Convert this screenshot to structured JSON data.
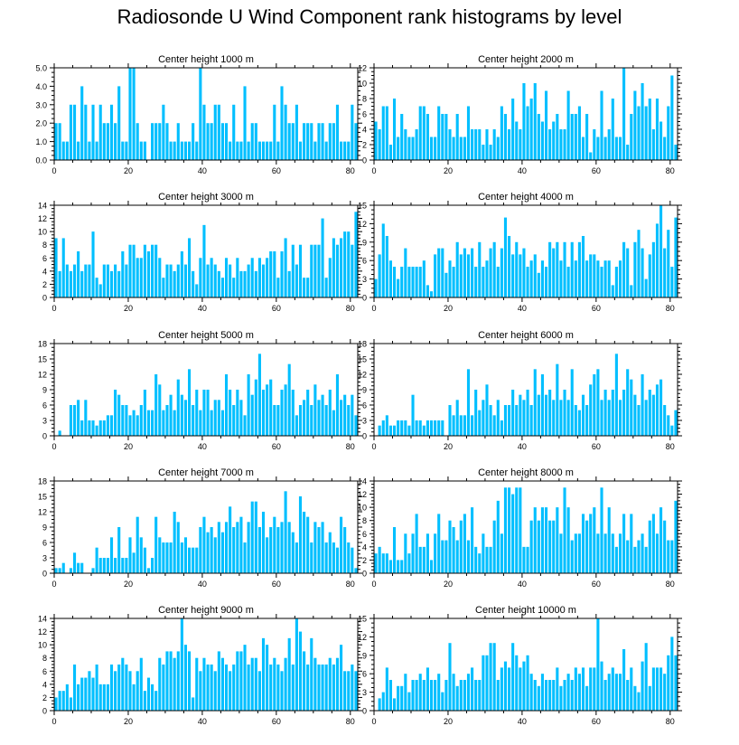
{
  "figure_title": "Radiosonde U Wind Component rank histograms by level",
  "bar_color": "#00bfff",
  "chart_data": [
    {
      "type": "bar",
      "title": "Center height 1000 m",
      "xlim": [
        0,
        82
      ],
      "x_ticks": [
        0,
        20,
        40,
        60,
        80
      ],
      "ylim": [
        0,
        5
      ],
      "y_ticks": [
        "0.0",
        "1.0",
        "2.0",
        "3.0",
        "4.0",
        "5.0"
      ],
      "values": [
        2,
        2,
        1,
        1,
        3,
        3,
        1,
        4,
        3,
        1,
        3,
        1,
        3,
        2,
        2,
        3,
        2,
        4,
        1,
        1,
        5,
        5,
        2,
        1,
        1,
        0,
        2,
        2,
        2,
        3,
        2,
        1,
        1,
        2,
        1,
        1,
        1,
        2,
        1,
        5,
        3,
        2,
        2,
        3,
        3,
        2,
        2,
        1,
        3,
        1,
        1,
        4,
        1,
        2,
        2,
        1,
        1,
        1,
        1,
        3,
        1,
        4,
        3,
        2,
        2,
        3,
        1,
        2,
        2,
        2,
        1,
        2,
        2,
        1,
        2,
        2,
        3,
        1,
        1,
        1,
        3,
        2
      ]
    },
    {
      "type": "bar",
      "title": "Center height 2000 m",
      "xlim": [
        0,
        82
      ],
      "x_ticks": [
        0,
        20,
        40,
        60,
        80
      ],
      "ylim": [
        0,
        12
      ],
      "y_ticks": [
        "0",
        "2",
        "4",
        "6",
        "8",
        "10",
        "12"
      ],
      "values": [
        5,
        4,
        7,
        7,
        2,
        8,
        3,
        6,
        4,
        3,
        3,
        4,
        7,
        7,
        6,
        3,
        3,
        7,
        6,
        6,
        4,
        3,
        6,
        3,
        3,
        7,
        4,
        4,
        4,
        2,
        4,
        2,
        4,
        3,
        7,
        6,
        4,
        8,
        5,
        4,
        10,
        7,
        8,
        10,
        6,
        5,
        9,
        4,
        5,
        6,
        4,
        4,
        9,
        6,
        6,
        7,
        3,
        6,
        1,
        4,
        3,
        9,
        3,
        4,
        8,
        3,
        3,
        12,
        2,
        6,
        9,
        7,
        10,
        7,
        8,
        4,
        8,
        5,
        3,
        7,
        11,
        2
      ]
    },
    {
      "type": "bar",
      "title": "Center height 3000 m",
      "xlim": [
        0,
        82
      ],
      "x_ticks": [
        0,
        20,
        40,
        60,
        80
      ],
      "ylim": [
        0,
        14
      ],
      "y_ticks": [
        "0",
        "2",
        "4",
        "6",
        "8",
        "10",
        "12",
        "14"
      ],
      "values": [
        9,
        4,
        9,
        5,
        4,
        5,
        7,
        4,
        5,
        5,
        10,
        3,
        2,
        5,
        5,
        4,
        5,
        4,
        7,
        5,
        8,
        8,
        6,
        6,
        8,
        7,
        8,
        8,
        6,
        3,
        5,
        5,
        4,
        5,
        7,
        5,
        9,
        4,
        2,
        6,
        11,
        5,
        6,
        5,
        4,
        3,
        6,
        5,
        3,
        6,
        4,
        4,
        5,
        6,
        4,
        6,
        5,
        6,
        7,
        7,
        3,
        7,
        9,
        4,
        8,
        5,
        8,
        3,
        3,
        8,
        8,
        8,
        12,
        3,
        6,
        9,
        8,
        9,
        10,
        10,
        8,
        13
      ]
    },
    {
      "type": "bar",
      "title": "Center height 4000 m",
      "xlim": [
        0,
        82
      ],
      "x_ticks": [
        0,
        20,
        40,
        60,
        80
      ],
      "ylim": [
        0,
        15
      ],
      "y_ticks": [
        "0",
        "3",
        "6",
        "9",
        "12",
        "15"
      ],
      "values": [
        3,
        7,
        12,
        10,
        6,
        5,
        3,
        5,
        8,
        5,
        5,
        5,
        5,
        6,
        2,
        1,
        7,
        8,
        8,
        4,
        6,
        5,
        9,
        7,
        8,
        7,
        8,
        5,
        9,
        5,
        6,
        8,
        9,
        5,
        8,
        13,
        10,
        7,
        9,
        7,
        8,
        5,
        6,
        7,
        4,
        6,
        5,
        9,
        8,
        9,
        6,
        9,
        5,
        9,
        6,
        9,
        10,
        6,
        7,
        7,
        6,
        5,
        6,
        6,
        2,
        5,
        6,
        9,
        8,
        2,
        9,
        11,
        8,
        3,
        7,
        9,
        12,
        15,
        8,
        11,
        5,
        13
      ]
    },
    {
      "type": "bar",
      "title": "Center height 5000 m",
      "xlim": [
        0,
        82
      ],
      "x_ticks": [
        0,
        20,
        40,
        60,
        80
      ],
      "ylim": [
        0,
        18
      ],
      "y_ticks": [
        "0",
        "3",
        "6",
        "9",
        "12",
        "15",
        "18"
      ],
      "values": [
        0,
        1,
        0,
        0,
        6,
        6,
        7,
        3,
        7,
        3,
        3,
        2,
        3,
        3,
        4,
        4,
        9,
        8,
        6,
        6,
        4,
        5,
        4,
        6,
        9,
        5,
        5,
        12,
        10,
        5,
        6,
        8,
        5,
        11,
        8,
        7,
        13,
        6,
        9,
        5,
        9,
        9,
        5,
        7,
        7,
        5,
        12,
        9,
        6,
        9,
        7,
        4,
        12,
        8,
        11,
        16,
        9,
        10,
        11,
        6,
        6,
        9,
        10,
        14,
        9,
        4,
        6,
        7,
        9,
        6,
        10,
        7,
        8,
        6,
        9,
        5,
        12,
        7,
        8,
        6,
        8,
        4
      ]
    },
    {
      "type": "bar",
      "title": "Center height 6000 m",
      "xlim": [
        0,
        82
      ],
      "x_ticks": [
        0,
        20,
        40,
        60,
        80
      ],
      "ylim": [
        0,
        18
      ],
      "y_ticks": [
        "0",
        "3",
        "6",
        "9",
        "12",
        "15",
        "18"
      ],
      "values": [
        0,
        2,
        3,
        4,
        2,
        2,
        3,
        3,
        3,
        2,
        8,
        3,
        3,
        2,
        3,
        3,
        3,
        3,
        3,
        0,
        6,
        4,
        7,
        4,
        4,
        13,
        4,
        9,
        5,
        7,
        10,
        6,
        4,
        7,
        3,
        6,
        6,
        9,
        6,
        8,
        7,
        9,
        6,
        13,
        8,
        12,
        8,
        9,
        7,
        14,
        7,
        9,
        7,
        13,
        6,
        5,
        8,
        6,
        10,
        12,
        13,
        7,
        9,
        7,
        9,
        16,
        7,
        9,
        13,
        11,
        8,
        6,
        12,
        7,
        9,
        8,
        10,
        11,
        6,
        4,
        2,
        5
      ]
    },
    {
      "type": "bar",
      "title": "Center height 7000 m",
      "xlim": [
        0,
        82
      ],
      "x_ticks": [
        0,
        20,
        40,
        60,
        80
      ],
      "ylim": [
        0,
        18
      ],
      "y_ticks": [
        "0",
        "3",
        "6",
        "9",
        "12",
        "15",
        "18"
      ],
      "values": [
        1,
        1,
        2,
        0,
        1,
        4,
        2,
        2,
        0,
        0,
        1,
        5,
        3,
        3,
        3,
        7,
        3,
        9,
        3,
        3,
        7,
        4,
        11,
        7,
        5,
        1,
        3,
        11,
        7,
        6,
        6,
        6,
        12,
        10,
        6,
        7,
        5,
        5,
        5,
        9,
        11,
        8,
        9,
        7,
        10,
        8,
        10,
        13,
        9,
        10,
        11,
        6,
        10,
        14,
        14,
        9,
        12,
        7,
        9,
        11,
        9,
        10,
        16,
        10,
        8,
        6,
        15,
        12,
        11,
        6,
        10,
        9,
        10,
        6,
        8,
        6,
        5,
        11,
        9,
        6,
        5,
        1
      ]
    },
    {
      "type": "bar",
      "title": "Center height 8000 m",
      "xlim": [
        0,
        82
      ],
      "x_ticks": [
        0,
        20,
        40,
        60,
        80
      ],
      "ylim": [
        0,
        14
      ],
      "y_ticks": [
        "0",
        "2",
        "4",
        "6",
        "8",
        "10",
        "12",
        "14"
      ],
      "values": [
        3,
        4,
        3,
        3,
        2,
        7,
        2,
        2,
        6,
        3,
        6,
        9,
        4,
        4,
        6,
        2,
        6,
        9,
        5,
        5,
        8,
        7,
        5,
        8,
        9,
        5,
        10,
        4,
        3,
        6,
        4,
        4,
        8,
        11,
        6,
        13,
        13,
        12,
        13,
        13,
        4,
        4,
        8,
        10,
        8,
        10,
        10,
        8,
        8,
        10,
        6,
        13,
        10,
        5,
        6,
        6,
        9,
        8,
        9,
        10,
        6,
        13,
        6,
        10,
        6,
        4,
        6,
        9,
        5,
        9,
        4,
        5,
        6,
        4,
        8,
        9,
        6,
        10,
        8,
        5,
        5,
        11
      ]
    },
    {
      "type": "bar",
      "title": "Center height 9000 m",
      "xlim": [
        0,
        82
      ],
      "x_ticks": [
        0,
        20,
        40,
        60,
        80
      ],
      "ylim": [
        0,
        14
      ],
      "y_ticks": [
        "0",
        "2",
        "4",
        "6",
        "8",
        "10",
        "12",
        "14"
      ],
      "values": [
        2,
        3,
        3,
        4,
        2,
        7,
        4,
        5,
        5,
        6,
        5,
        7,
        4,
        4,
        4,
        7,
        6,
        7,
        8,
        7,
        6,
        4,
        6,
        8,
        3,
        5,
        4,
        3,
        8,
        7,
        9,
        9,
        8,
        9,
        14,
        10,
        9,
        2,
        8,
        6,
        8,
        7,
        7,
        6,
        9,
        8,
        7,
        6,
        7,
        9,
        9,
        10,
        7,
        8,
        8,
        6,
        11,
        10,
        7,
        8,
        7,
        6,
        8,
        11,
        7,
        14,
        12,
        9,
        7,
        11,
        8,
        7,
        7,
        7,
        8,
        7,
        8,
        10,
        6,
        6,
        7,
        6
      ]
    },
    {
      "type": "bar",
      "title": "Center height 10000 m",
      "xlim": [
        0,
        82
      ],
      "x_ticks": [
        0,
        20,
        40,
        60,
        80
      ],
      "ylim": [
        0,
        15
      ],
      "y_ticks": [
        "0",
        "3",
        "6",
        "9",
        "12",
        "15"
      ],
      "values": [
        0,
        2,
        3,
        7,
        5,
        2,
        4,
        4,
        6,
        3,
        5,
        5,
        6,
        5,
        7,
        5,
        5,
        6,
        3,
        5,
        11,
        6,
        4,
        5,
        5,
        6,
        7,
        5,
        5,
        9,
        9,
        11,
        11,
        5,
        7,
        8,
        7,
        11,
        9,
        7,
        8,
        9,
        6,
        5,
        4,
        6,
        5,
        5,
        5,
        7,
        4,
        5,
        6,
        5,
        7,
        6,
        7,
        4,
        7,
        7,
        15,
        8,
        5,
        6,
        7,
        6,
        6,
        10,
        5,
        7,
        4,
        3,
        8,
        11,
        4,
        7,
        7,
        7,
        6,
        9,
        12,
        9
      ]
    }
  ]
}
